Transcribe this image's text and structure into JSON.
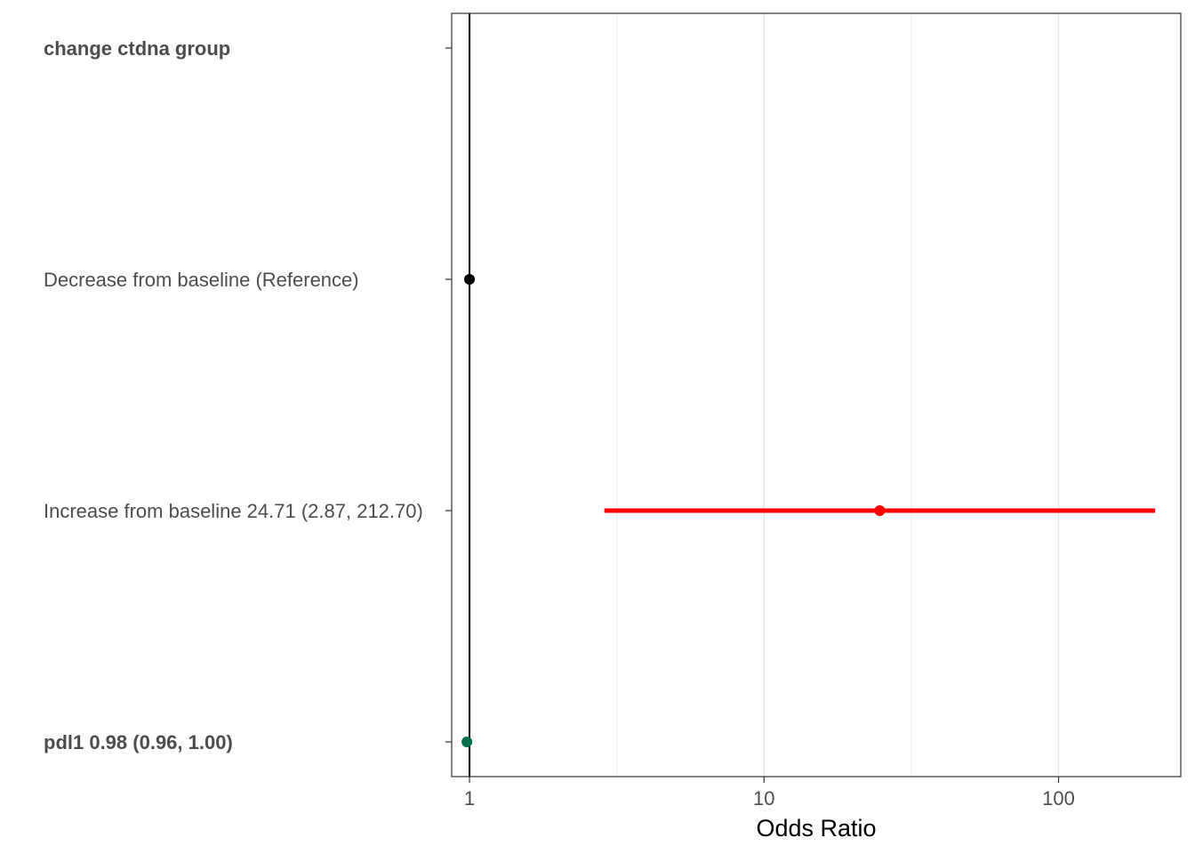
{
  "chart_data": {
    "type": "forest",
    "xlabel": "Odds Ratio",
    "x_scale": "log10",
    "xlim": [
      0.87,
      260
    ],
    "x_ticks": [
      {
        "value": 1,
        "label": "1"
      },
      {
        "value": 10,
        "label": "10"
      },
      {
        "value": 100,
        "label": "100"
      }
    ],
    "minor_gridlines": [
      3.1623,
      31.623
    ],
    "reference_line": 1,
    "rows": [
      {
        "label": "change ctdna group",
        "bold": true,
        "estimate": null,
        "ci_low": null,
        "ci_high": null,
        "color": ""
      },
      {
        "label": "Decrease from baseline (Reference)",
        "bold": false,
        "estimate": 1,
        "ci_low": null,
        "ci_high": null,
        "color": "#000000"
      },
      {
        "label": "Increase from baseline 24.71 (2.87, 212.70)",
        "bold": false,
        "estimate": 24.71,
        "ci_low": 2.87,
        "ci_high": 212.7,
        "color": "#ff0000"
      },
      {
        "label": "pdl1 0.98 (0.96, 1.00)",
        "bold": true,
        "estimate": 0.98,
        "ci_low": 0.96,
        "ci_high": 1.0,
        "color": "#006f4c"
      }
    ]
  }
}
